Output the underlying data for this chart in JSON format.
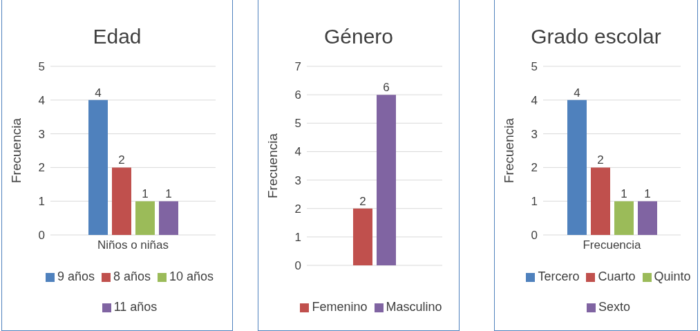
{
  "chart_data": [
    {
      "type": "bar",
      "title": "Edad",
      "ylabel": "Frecuencia",
      "categories": [
        "Niños o niñas"
      ],
      "series": [
        {
          "name": "9 años",
          "color": "#4f81bd",
          "values": [
            4
          ]
        },
        {
          "name": "8 años",
          "color": "#c0504d",
          "values": [
            2
          ]
        },
        {
          "name": "10 años",
          "color": "#9bbb59",
          "values": [
            1
          ]
        },
        {
          "name": "11 años",
          "color": "#8064a2",
          "values": [
            1
          ]
        }
      ],
      "ylim": [
        0,
        5
      ],
      "yticks": [
        0,
        1,
        2,
        3,
        4,
        5
      ],
      "grid": "y",
      "legend": "bottom",
      "data_labels": true
    },
    {
      "type": "bar",
      "title": "Género",
      "ylabel": "Frecuencia",
      "categories": [
        null
      ],
      "series": [
        {
          "name": "Femenino",
          "color": "#c0504d",
          "values": [
            2
          ]
        },
        {
          "name": "Masculino",
          "color": "#8064a2",
          "values": [
            6
          ]
        }
      ],
      "ylim": [
        0,
        7
      ],
      "yticks": [
        0,
        1,
        2,
        3,
        4,
        5,
        6,
        7
      ],
      "grid": "y",
      "legend": "bottom",
      "data_labels": true
    },
    {
      "type": "bar",
      "title": "Grado escolar",
      "ylabel": "Frecuencia",
      "categories": [
        "Frecuencia"
      ],
      "series": [
        {
          "name": "Tercero",
          "color": "#4f81bd",
          "values": [
            4
          ]
        },
        {
          "name": "Cuarto",
          "color": "#c0504d",
          "values": [
            2
          ]
        },
        {
          "name": "Quinto",
          "color": "#9bbb59",
          "values": [
            1
          ]
        },
        {
          "name": "Sexto",
          "color": "#8064a2",
          "values": [
            1
          ]
        }
      ],
      "ylim": [
        0,
        5
      ],
      "yticks": [
        0,
        1,
        2,
        3,
        4,
        5
      ],
      "grid": "y",
      "legend": "bottom",
      "data_labels": true
    }
  ]
}
